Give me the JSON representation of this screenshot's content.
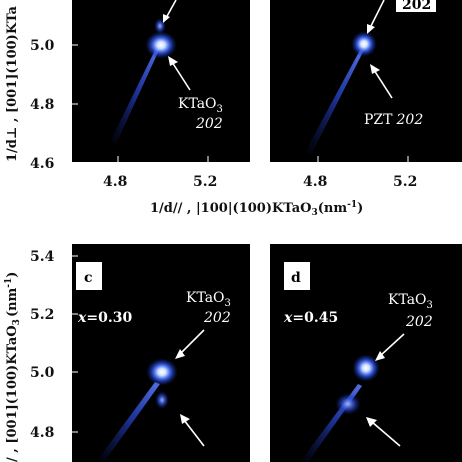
{
  "axes": {
    "top_ylabel": "1/d⊥ , [001](100)KTa",
    "top_xlabel_main": "1/d// , |100|(100)KTaO",
    "top_xlabel_unit": "(nm",
    "bottom_ylabel": "/ , [001](100)KTaO",
    "bottom_ylabel_unit": "(nm",
    "top_yticks": [
      "5.0",
      "4.8",
      "4.6"
    ],
    "top_xticks_left": [
      "4.8",
      "5.2"
    ],
    "top_xticks_right": [
      "4.8",
      "5.2"
    ],
    "bottom_yticks": [
      "5.4",
      "5.2",
      "5.0",
      "4.8"
    ]
  },
  "panels": {
    "a": {
      "annotation_main": "KTaO",
      "annotation_sub": "3",
      "annotation_refl": "202"
    },
    "b": {
      "top_label": "202",
      "annotation_main": "PZT",
      "annotation_refl": "202"
    },
    "c": {
      "letter": "c",
      "param_var": "x",
      "param_value": "=0.30",
      "annotation_main": "KTaO",
      "annotation_sub": "3",
      "annotation_refl": "202"
    },
    "d": {
      "letter": "d",
      "param_var": "x",
      "param_value": "=0.45",
      "annotation_main": "KTaO",
      "annotation_sub": "3",
      "annotation_refl": "202"
    }
  },
  "colors": {
    "panel_background": "#000000",
    "spot_core": "#ffffff",
    "spot_glow": "#3a64ff"
  }
}
